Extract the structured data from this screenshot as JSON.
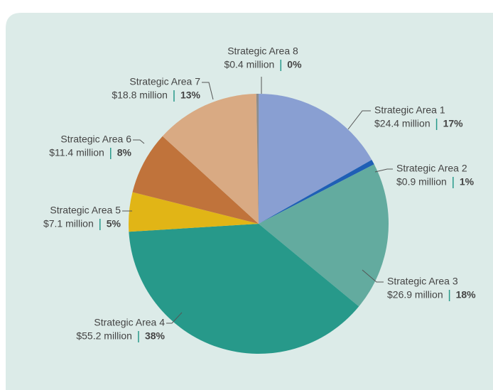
{
  "chart_data": {
    "type": "pie",
    "categories": [
      "Strategic Area 1",
      "Strategic Area 2",
      "Strategic Area 3",
      "Strategic Area 4",
      "Strategic Area 5",
      "Strategic Area 6",
      "Strategic Area 7",
      "Strategic Area 8"
    ],
    "values": [
      24.4,
      0.9,
      26.9,
      55.2,
      7.1,
      11.4,
      18.8,
      0.4
    ],
    "value_labels": [
      "$24.4 million",
      "$0.9 million",
      "$26.9 million",
      "$55.2 million",
      "$7.1 million",
      "$11.4 million",
      "$18.8 million",
      "$0.4 million"
    ],
    "percent_labels": [
      "17%",
      "1%",
      "18%",
      "38%",
      "5%",
      "8%",
      "13%",
      "0%"
    ],
    "colors": [
      "#899fd2",
      "#1f5fb5",
      "#63ab9f",
      "#27998a",
      "#e1b516",
      "#c0733b",
      "#d9aa83",
      "#8c8c8c"
    ]
  }
}
